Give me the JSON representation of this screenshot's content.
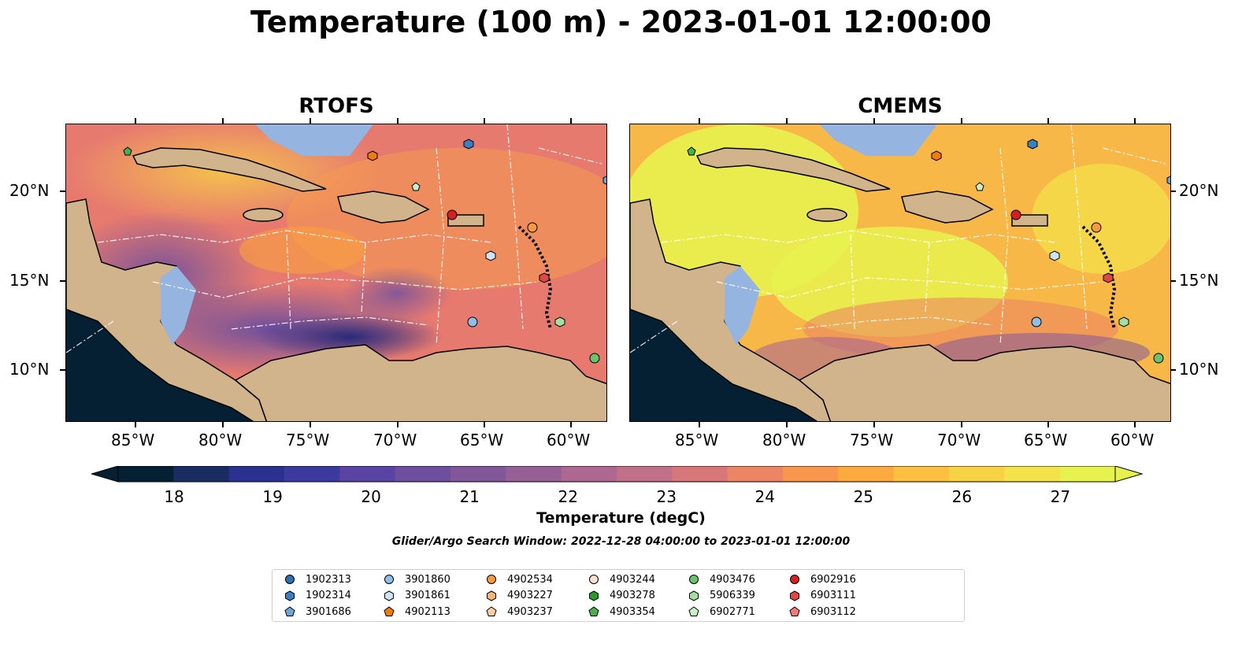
{
  "title": "Temperature (100 m) - 2023-01-01 12:00:00",
  "panels": [
    {
      "title": "RTOFS",
      "model": "rtofs"
    },
    {
      "title": "CMEMS",
      "model": "cmems"
    }
  ],
  "axes": {
    "lon_ticks": [
      "85°W",
      "80°W",
      "75°W",
      "70°W",
      "65°W",
      "60°W"
    ],
    "lat_ticks": [
      "20°N",
      "15°N",
      "10°N"
    ]
  },
  "colorbar": {
    "label": "Temperature (degC)",
    "ticks": [
      "18",
      "19",
      "20",
      "21",
      "22",
      "23",
      "24",
      "25",
      "26",
      "27"
    ],
    "colors": [
      "#062033",
      "#1b2c63",
      "#2b3190",
      "#3d3a9f",
      "#5a44a3",
      "#6e4f9e",
      "#82579a",
      "#965f96",
      "#ac6890",
      "#c1708a",
      "#d87779",
      "#ec8563",
      "#f8964e",
      "#fbaa3f",
      "#fcc040",
      "#f8d245",
      "#f4e24a",
      "#e8f24f"
    ]
  },
  "search_window": "Glider/Argo Search Window: 2022-12-28 04:00:00 to 2023-01-01 12:00:00",
  "legend": {
    "items": [
      {
        "label": "1902313",
        "marker": "circle",
        "color": "#2f6fb6"
      },
      {
        "label": "1902314",
        "marker": "hexagon",
        "color": "#3b7fc4"
      },
      {
        "label": "3901686",
        "marker": "pentagon",
        "color": "#6fa6d9"
      },
      {
        "label": "3901860",
        "marker": "circle",
        "color": "#8fbfe8"
      },
      {
        "label": "3901861",
        "marker": "hexagon",
        "color": "#cde4f7"
      },
      {
        "label": "4902113",
        "marker": "pentagon",
        "color": "#f07c10"
      },
      {
        "label": "4902534",
        "marker": "circle",
        "color": "#f59a3e"
      },
      {
        "label": "4903227",
        "marker": "hexagon",
        "color": "#f8b575"
      },
      {
        "label": "4903237",
        "marker": "pentagon",
        "color": "#fbcfa5"
      },
      {
        "label": "4903244",
        "marker": "circle",
        "color": "#fde2cc"
      },
      {
        "label": "4903278",
        "marker": "hexagon",
        "color": "#2a9a2a"
      },
      {
        "label": "4903354",
        "marker": "pentagon",
        "color": "#4cae4c"
      },
      {
        "label": "4903476",
        "marker": "circle",
        "color": "#6bc46b"
      },
      {
        "label": "5906339",
        "marker": "hexagon",
        "color": "#a3dfa3"
      },
      {
        "label": "6902771",
        "marker": "pentagon",
        "color": "#c9eec9"
      },
      {
        "label": "6902916",
        "marker": "circle",
        "color": "#d42020"
      },
      {
        "label": "6903111",
        "marker": "hexagon",
        "color": "#e04848"
      },
      {
        "label": "6903112",
        "marker": "pentagon",
        "color": "#ef7a7a"
      }
    ]
  },
  "colors": {
    "land": "#d2b48c",
    "shelf": "#95b4e0",
    "pacific": "#062033",
    "coast": "#000000",
    "eez": "#ffffff"
  }
}
